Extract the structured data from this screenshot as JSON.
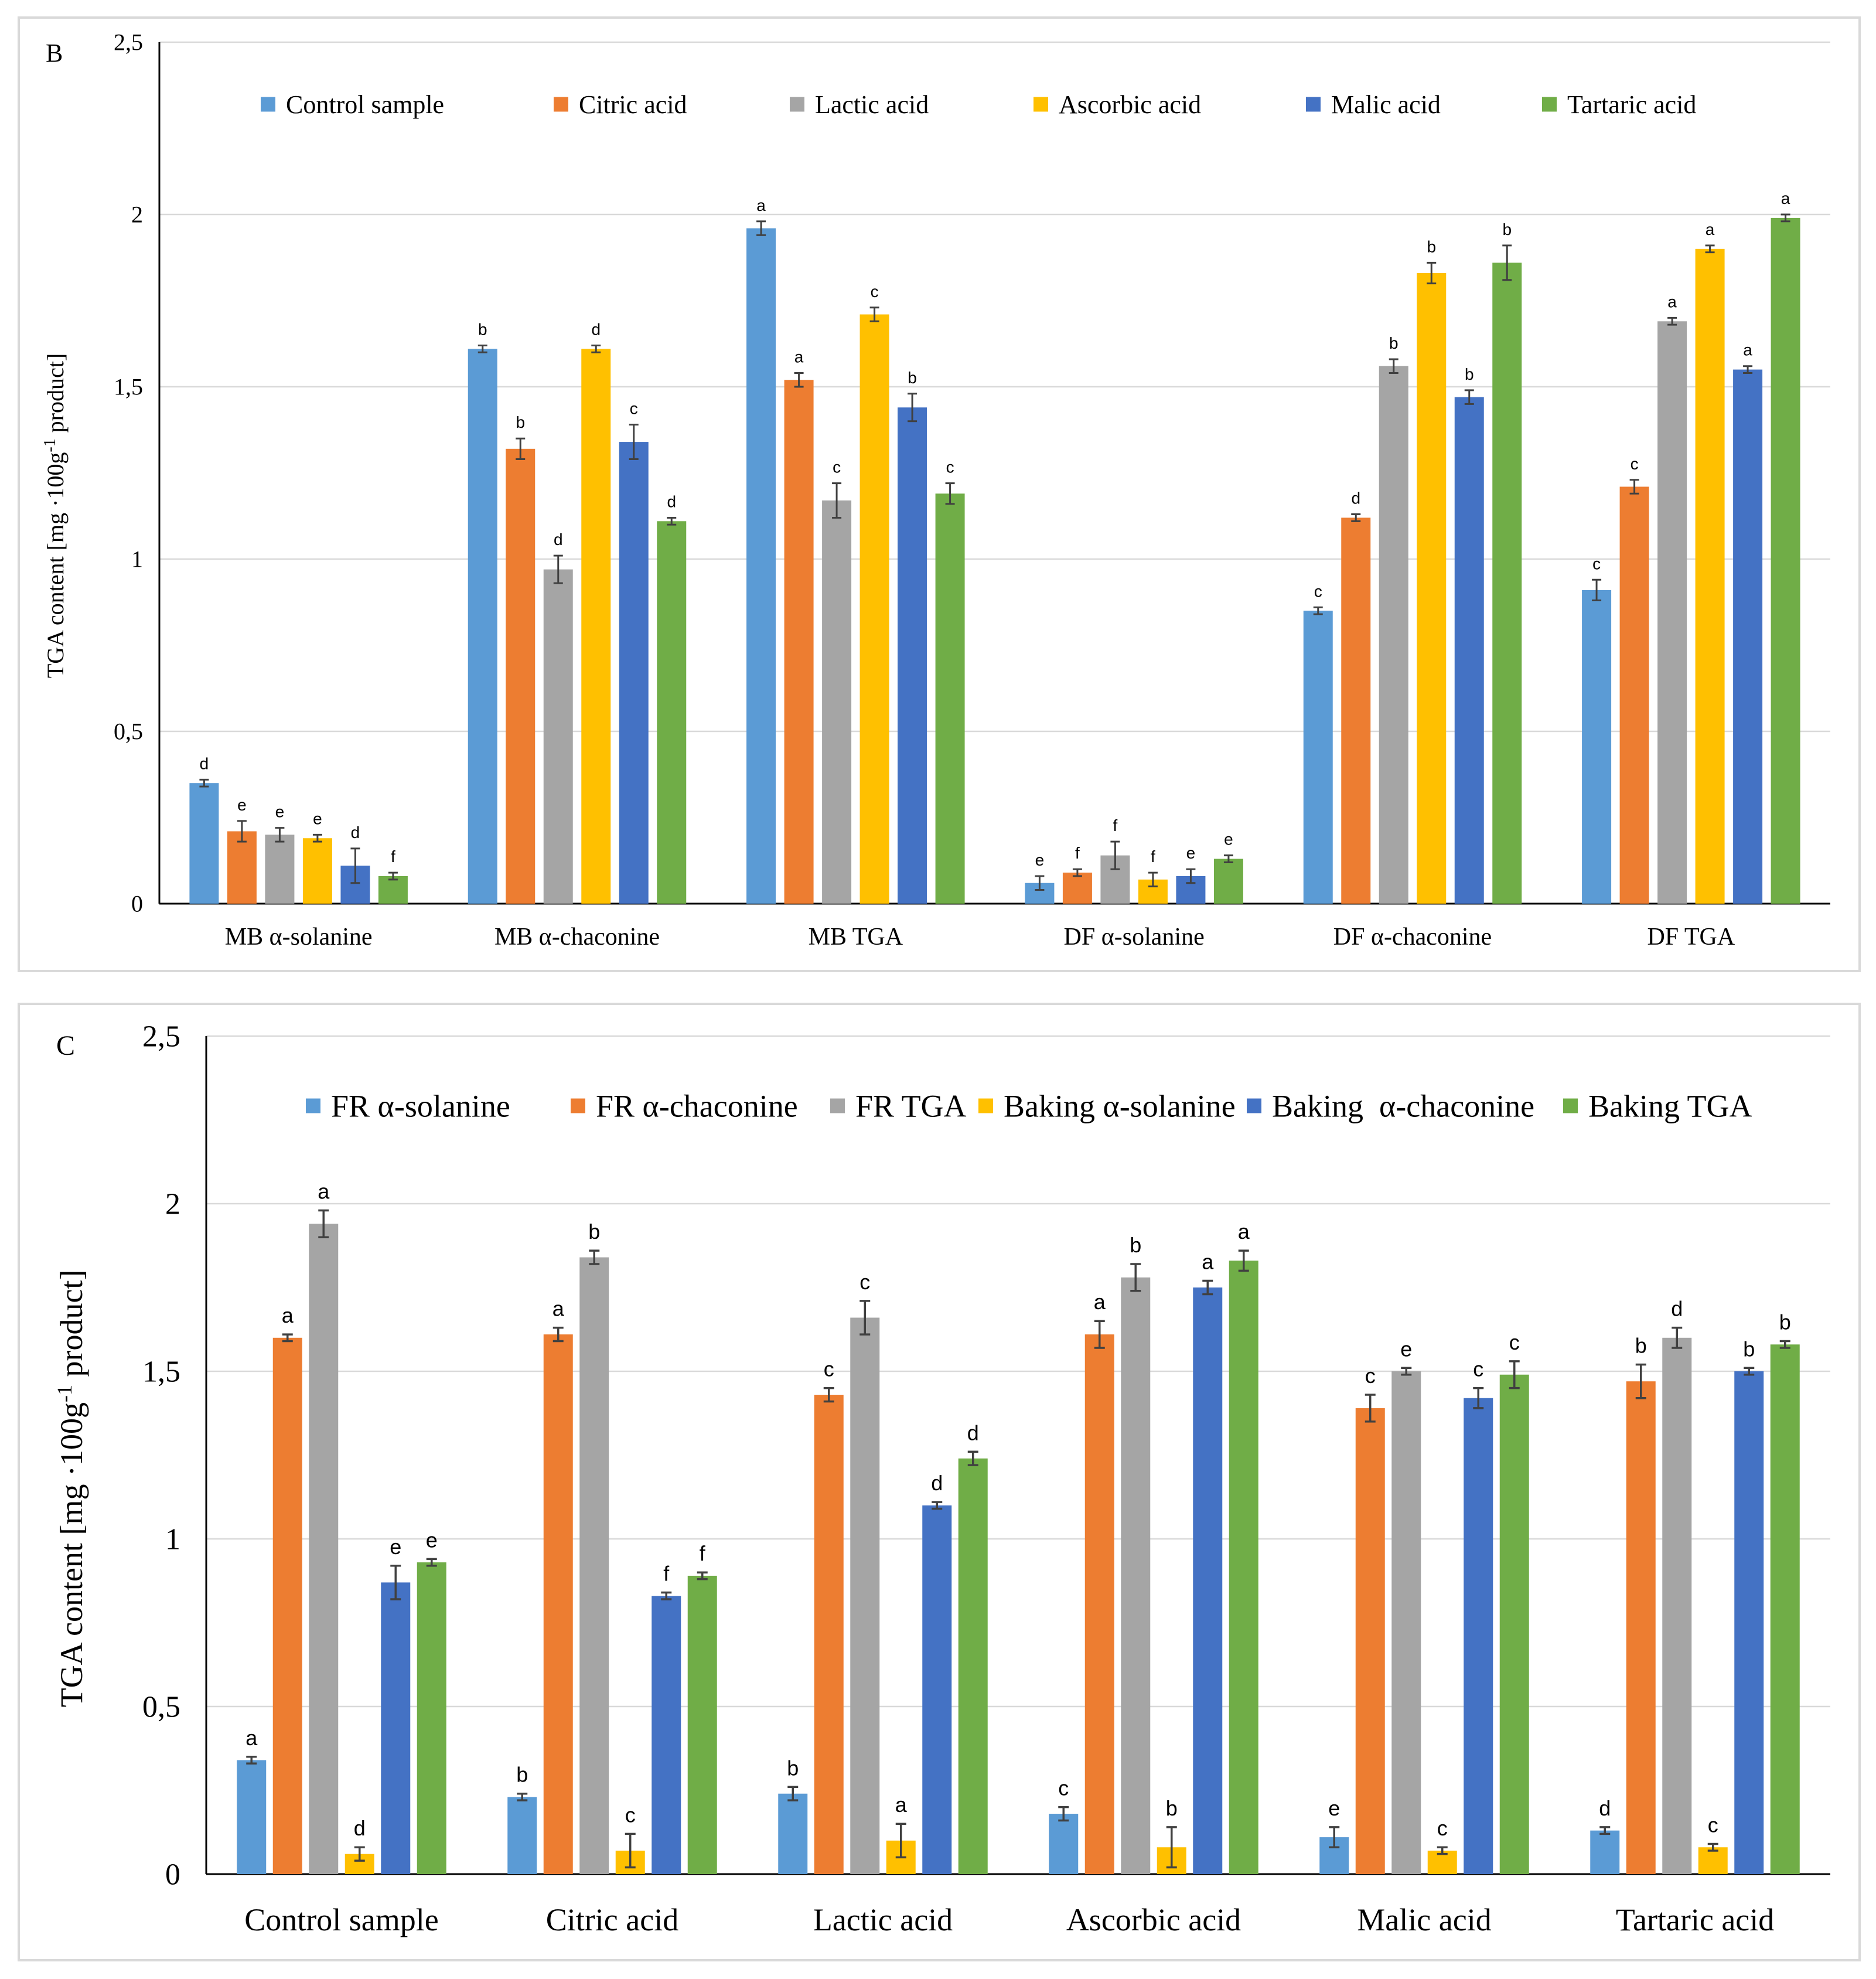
{
  "chart_data": [
    {
      "type": "bar",
      "panel_label": "B",
      "title": "",
      "xlabel": "",
      "ylabel_main": "TGA content [mg ·100g",
      "ylabel_sup": "-1",
      "ylabel_tail": " product]",
      "ylim": [
        0,
        2.5
      ],
      "yticks": [
        "0",
        "0,5",
        "1",
        "1,5",
        "2",
        "2,5"
      ],
      "grid": true,
      "legend_position": "top",
      "categories": [
        "MB α-solanine",
        "MB α-chaconine",
        "MB TGA",
        "DF α-solanine",
        "DF α-chaconine",
        "DF TGA"
      ],
      "series": [
        {
          "name": "Control sample",
          "color": "#5B9BD5",
          "values": [
            0.35,
            1.61,
            1.96,
            0.06,
            0.85,
            0.91
          ],
          "errors": [
            0.01,
            0.01,
            0.02,
            0.02,
            0.01,
            0.03
          ],
          "letters": [
            "d",
            "b",
            "a",
            "e",
            "c",
            "c"
          ]
        },
        {
          "name": "Citric acid",
          "color": "#ED7D31",
          "values": [
            0.21,
            1.32,
            1.52,
            0.09,
            1.12,
            1.21
          ],
          "errors": [
            0.03,
            0.03,
            0.02,
            0.01,
            0.01,
            0.02
          ],
          "letters": [
            "e",
            "b",
            "a",
            "f",
            "d",
            "c"
          ]
        },
        {
          "name": "Lactic acid",
          "color": "#A5A5A5",
          "values": [
            0.2,
            0.97,
            1.17,
            0.14,
            1.56,
            1.69
          ],
          "errors": [
            0.02,
            0.04,
            0.05,
            0.04,
            0.02,
            0.01
          ],
          "letters": [
            "e",
            "d",
            "c",
            "f",
            "b",
            "a"
          ]
        },
        {
          "name": "Ascorbic acid",
          "color": "#FFC000",
          "values": [
            0.19,
            1.61,
            1.71,
            0.07,
            1.83,
            1.9
          ],
          "errors": [
            0.01,
            0.01,
            0.02,
            0.02,
            0.03,
            0.01
          ],
          "letters": [
            "e",
            "d",
            "c",
            "f",
            "b",
            "a"
          ]
        },
        {
          "name": "Malic acid",
          "color": "#4472C4",
          "values": [
            0.11,
            1.34,
            1.44,
            0.08,
            1.47,
            1.55
          ],
          "errors": [
            0.05,
            0.05,
            0.04,
            0.02,
            0.02,
            0.01
          ],
          "letters": [
            "d",
            "c",
            "b",
            "e",
            "b",
            "a"
          ]
        },
        {
          "name": "Tartaric acid",
          "color": "#70AD47",
          "values": [
            0.08,
            1.11,
            1.19,
            0.13,
            1.86,
            1.99
          ],
          "errors": [
            0.01,
            0.01,
            0.03,
            0.01,
            0.05,
            0.01
          ],
          "letters": [
            "f",
            "d",
            "c",
            "e",
            "b",
            "a"
          ]
        }
      ]
    },
    {
      "type": "bar",
      "panel_label": "C",
      "title": "",
      "xlabel": "",
      "ylabel_main": "TGA content [mg ·100g",
      "ylabel_sup": "-1",
      "ylabel_tail": " product]",
      "ylim": [
        0,
        2.5
      ],
      "yticks": [
        "0",
        "0,5",
        "1",
        "1,5",
        "2",
        "2,5"
      ],
      "grid": true,
      "legend_position": "top",
      "categories": [
        "Control sample",
        "Citric acid",
        "Lactic acid",
        "Ascorbic acid",
        "Malic acid",
        "Tartaric acid"
      ],
      "series": [
        {
          "name": "FR α-solanine",
          "color": "#5B9BD5",
          "values": [
            0.34,
            0.23,
            0.24,
            0.18,
            0.11,
            0.13
          ],
          "errors": [
            0.01,
            0.01,
            0.02,
            0.02,
            0.03,
            0.01
          ],
          "letters": [
            "a",
            "b",
            "b",
            "c",
            "e",
            "d"
          ]
        },
        {
          "name": "FR α-chaconine",
          "color": "#ED7D31",
          "values": [
            1.6,
            1.61,
            1.43,
            1.61,
            1.39,
            1.47
          ],
          "errors": [
            0.01,
            0.02,
            0.02,
            0.04,
            0.04,
            0.05
          ],
          "letters": [
            "a",
            "a",
            "c",
            "a",
            "c",
            "b"
          ]
        },
        {
          "name": "FR TGA",
          "color": "#A5A5A5",
          "values": [
            1.94,
            1.84,
            1.66,
            1.78,
            1.5,
            1.6
          ],
          "errors": [
            0.04,
            0.02,
            0.05,
            0.04,
            0.01,
            0.03
          ],
          "letters": [
            "a",
            "b",
            "c",
            "b",
            "e",
            "d"
          ]
        },
        {
          "name": "Baking α-solanine",
          "color": "#FFC000",
          "values": [
            0.06,
            0.07,
            0.1,
            0.08,
            0.07,
            0.08
          ],
          "errors": [
            0.02,
            0.05,
            0.05,
            0.06,
            0.01,
            0.01
          ],
          "letters": [
            "d",
            "c",
            "a",
            "b",
            "c",
            "c"
          ]
        },
        {
          "name": "Baking  α-chaconine",
          "color": "#4472C4",
          "values": [
            0.87,
            0.83,
            1.1,
            1.75,
            1.42,
            1.5
          ],
          "errors": [
            0.05,
            0.01,
            0.01,
            0.02,
            0.03,
            0.01
          ],
          "letters": [
            "e",
            "f",
            "d",
            "a",
            "c",
            "b"
          ]
        },
        {
          "name": "Baking TGA",
          "color": "#70AD47",
          "values": [
            0.93,
            0.89,
            1.24,
            1.83,
            1.49,
            1.58
          ],
          "errors": [
            0.01,
            0.01,
            0.02,
            0.03,
            0.04,
            0.01
          ],
          "letters": [
            "e",
            "f",
            "d",
            "a",
            "c",
            "b"
          ]
        }
      ]
    }
  ]
}
